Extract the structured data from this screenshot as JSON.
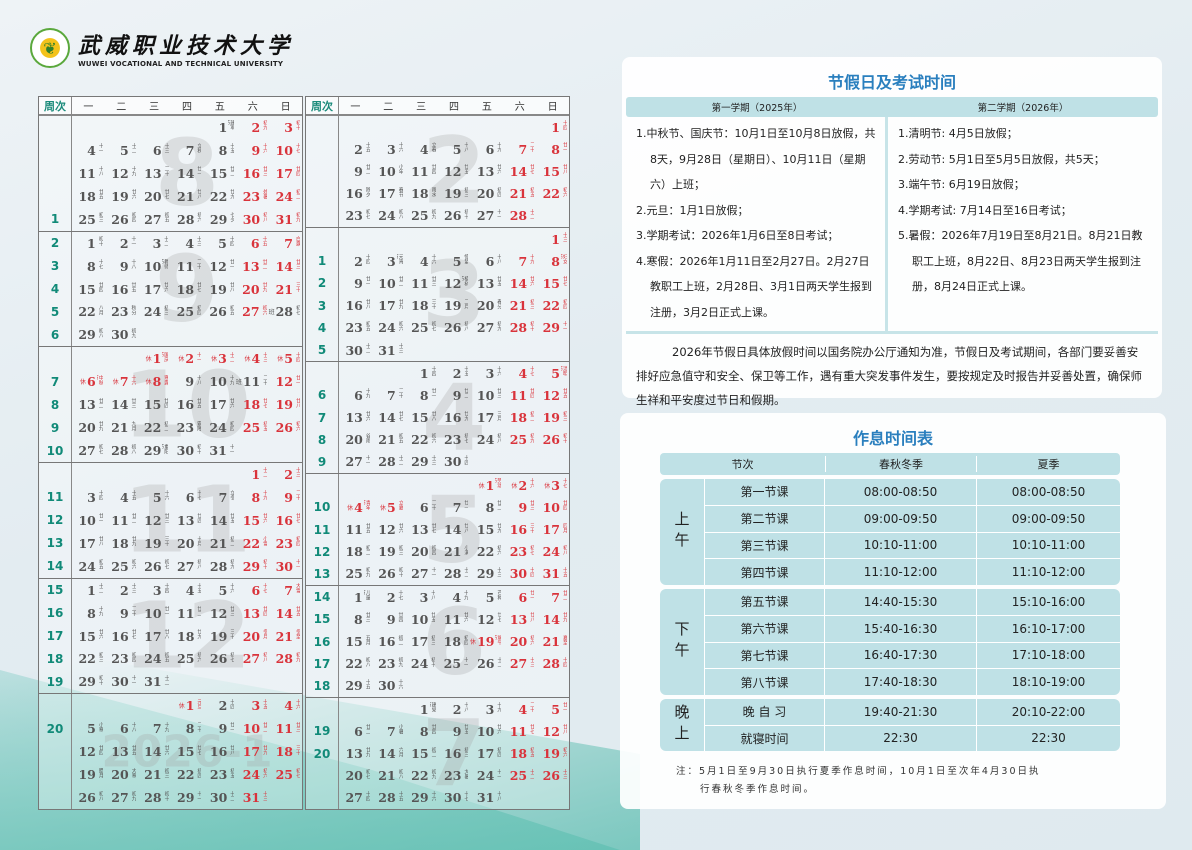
{
  "header": {
    "logo_text_cn": "武威职业技术大学",
    "logo_text_en": "WUWEI VOCATIONAL AND TECHNICAL UNIVERSITY"
  },
  "calendar": {
    "week_col_label": "周次",
    "weekdays": [
      "一",
      "二",
      "三",
      "四",
      "五",
      "六",
      "日"
    ],
    "colors": {
      "weekend": "#d9333b",
      "weekday": "#555555",
      "week_number": "#118a78"
    },
    "rest_mark": "休",
    "work_mark": "班",
    "columns": [
      {
        "months": [
          {
            "watermark": "8",
            "year": 2025,
            "month": 8,
            "first_weekday": 5,
            "days": 31,
            "week_numbers": [
              "",
              "",
              "",
              "",
              "1"
            ],
            "rest": [],
            "work": [],
            "lunar": [
              "建军节",
              "初九",
              "初十",
              "十一",
              "十二",
              "十三",
              "立秋",
              "十五",
              "十六",
              "十七",
              "十八",
              "十九",
              "二十",
              "廿一",
              "廿二",
              "廿三",
              "廿四",
              "廿五",
              "廿六",
              "廿七",
              "廿八",
              "廿九",
              "处暑",
              "初二",
              "初三",
              "初四",
              "初五",
              "初六",
              "七夕",
              "初八",
              "初九"
            ]
          },
          {
            "watermark": "9",
            "year": 2025,
            "month": 9,
            "first_weekday": 1,
            "days": 30,
            "week_numbers": [
              "2",
              "3",
              "4",
              "5",
              "6"
            ],
            "rest": [],
            "work": [
              28
            ],
            "lunar": [
              "初十",
              "十一",
              "十二",
              "十三",
              "十四",
              "十五",
              "白露",
              "十七",
              "十八",
              "教师节",
              "二十",
              "廿一",
              "廿二",
              "廿三",
              "廿四",
              "廿五",
              "廿六",
              "廿七",
              "廿八",
              "廿九",
              "三十",
              "八月",
              "秋分",
              "初三",
              "初四",
              "初五",
              "初六",
              "初七",
              "初八",
              "初九"
            ]
          },
          {
            "watermark": "10",
            "year": 2025,
            "month": 10,
            "first_weekday": 3,
            "days": 31,
            "week_numbers": [
              "",
              "7",
              "8",
              "9",
              "10"
            ],
            "rest": [
              1,
              2,
              3,
              4,
              5,
              6,
              7,
              8
            ],
            "work": [
              11
            ],
            "lunar": [
              "国庆节",
              "十一",
              "十二",
              "十三",
              "十四",
              "中秋节",
              "十六",
              "寒露",
              "十八",
              "十九",
              "二十",
              "廿一",
              "廿二",
              "廿三",
              "廿四",
              "廿五",
              "廿六",
              "廿七",
              "廿八",
              "廿九",
              "九月",
              "初二",
              "霜降",
              "初四",
              "初五",
              "初六",
              "初七",
              "初八",
              "重阳节",
              "初十",
              "十一"
            ]
          },
          {
            "watermark": "11",
            "year": 2025,
            "month": 11,
            "first_weekday": 6,
            "days": 30,
            "week_numbers": [
              "",
              "11",
              "12",
              "13",
              "14"
            ],
            "rest": [],
            "work": [],
            "lunar": [
              "十二",
              "十三",
              "十四",
              "十五",
              "十六",
              "十七",
              "立冬",
              "十九",
              "二十",
              "廿一",
              "廿二",
              "廿三",
              "廿四",
              "廿五",
              "廿六",
              "廿七",
              "廿八",
              "廿九",
              "三十",
              "十月",
              "初二",
              "小雪",
              "初四",
              "初五",
              "初六",
              "初七",
              "初八",
              "初九",
              "初十",
              "十一"
            ]
          },
          {
            "watermark": "12",
            "year": 2025,
            "month": 12,
            "first_weekday": 1,
            "days": 31,
            "week_numbers": [
              "15",
              "16",
              "17",
              "18",
              "19"
            ],
            "rest": [],
            "work": [],
            "lunar": [
              "十二",
              "十三",
              "十四",
              "十五",
              "十六",
              "十七",
              "大雪",
              "十九",
              "二十",
              "廿一",
              "廿二",
              "廿三",
              "廿四",
              "廿五",
              "廿六",
              "廿七",
              "廿八",
              "廿九",
              "三十",
              "冬月",
              "冬至",
              "初三",
              "初四",
              "初五",
              "初六",
              "初七",
              "初八",
              "初九",
              "初十",
              "十一",
              "十二"
            ]
          },
          {
            "watermark": "2026-1",
            "year": 2026,
            "month": 1,
            "first_weekday": 4,
            "days": 31,
            "week_numbers": [
              "",
              "20",
              "",
              "",
              ""
            ],
            "rest": [
              1
            ],
            "work": [],
            "lunar": [
              "元旦",
              "十四",
              "十五",
              "十六",
              "小寒",
              "十八",
              "十九",
              "二十",
              "廿一",
              "廿二",
              "廿三",
              "廿四",
              "廿五",
              "廿六",
              "廿七",
              "廿八",
              "廿九",
              "三十",
              "腊月",
              "大寒",
              "初三",
              "初四",
              "初五",
              "初六",
              "初七",
              "初八",
              "初九",
              "初十",
              "十一",
              "十二",
              "十三"
            ]
          }
        ]
      },
      {
        "months": [
          {
            "watermark": "2",
            "year": 2026,
            "month": 2,
            "first_weekday": 7,
            "days": 28,
            "week_numbers": [
              "",
              "",
              "",
              "",
              ""
            ],
            "rest": [],
            "work": [],
            "lunar": [
              "十四",
              "十五",
              "十六",
              "立春",
              "十八",
              "十九",
              "二十",
              "廿一",
              "廿二",
              "小年",
              "廿四",
              "廿五",
              "廿六",
              "廿七",
              "廿八",
              "除夕",
              "春节",
              "雨水",
              "初三",
              "初四",
              "初五",
              "初六",
              "初七",
              "初八",
              "初九",
              "初十",
              "十一",
              "十二"
            ]
          },
          {
            "watermark": "3",
            "year": 2026,
            "month": 3,
            "first_weekday": 7,
            "days": 31,
            "week_numbers": [
              "",
              "1",
              "2",
              "3",
              "4",
              "5"
            ],
            "rest": [],
            "work": [],
            "lunar": [
              "十三",
              "十四",
              "元宵节",
              "十六",
              "惊蛰",
              "十八",
              "十九",
              "妇女节",
              "廿一",
              "廿二",
              "廿三",
              "植树节",
              "廿五",
              "廿六",
              "廿七",
              "廿八",
              "廿九",
              "三十",
              "二月",
              "春分",
              "初三",
              "初四",
              "初五",
              "初六",
              "初七",
              "初八",
              "初九",
              "初十",
              "十一",
              "十二",
              "十三"
            ]
          },
          {
            "watermark": "4",
            "year": 2026,
            "month": 4,
            "first_weekday": 3,
            "days": 30,
            "week_numbers": [
              "",
              "6",
              "7",
              "8",
              "9"
            ],
            "rest": [],
            "work": [],
            "lunar": [
              "十四",
              "十五",
              "十六",
              "十七",
              "清明节",
              "十九",
              "二十",
              "廿一",
              "廿二",
              "廿三",
              "廿四",
              "廿五",
              "廿六",
              "廿七",
              "廿八",
              "廿九",
              "三月",
              "初二",
              "初三",
              "谷雨",
              "初五",
              "初六",
              "初七",
              "初八",
              "初九",
              "初十",
              "十一",
              "十二",
              "十三",
              "十四"
            ]
          },
          {
            "watermark": "5",
            "year": 2026,
            "month": 5,
            "first_weekday": 5,
            "days": 31,
            "week_numbers": [
              "",
              "10",
              "11",
              "12",
              "13"
            ],
            "rest": [
              1,
              2,
              3,
              4,
              5
            ],
            "work": [],
            "lunar": [
              "劳动节",
              "十六",
              "十七",
              "青年节",
              "立夏",
              "二十",
              "廿一",
              "廿二",
              "廿三",
              "廿四",
              "廿五",
              "廿六",
              "廿七",
              "廿八",
              "廿九",
              "三十",
              "四月",
              "初二",
              "初三",
              "初四",
              "小满",
              "初六",
              "初七",
              "初八",
              "初九",
              "初十",
              "十一",
              "十二",
              "十三",
              "十四",
              "十五"
            ]
          },
          {
            "watermark": "6",
            "year": 2026,
            "month": 6,
            "first_weekday": 1,
            "days": 30,
            "week_numbers": [
              "14",
              "15",
              "16",
              "17",
              "18"
            ],
            "rest": [
              19
            ],
            "work": [],
            "lunar": [
              "儿童节",
              "十七",
              "十八",
              "十九",
              "芒种",
              "廿一",
              "廿二",
              "廿三",
              "廿四",
              "廿五",
              "廿六",
              "廿七",
              "廿八",
              "廿九",
              "五月",
              "初二",
              "初三",
              "初四",
              "端午节",
              "初六",
              "夏至",
              "初八",
              "初九",
              "初十",
              "十一",
              "十二",
              "十三",
              "十四",
              "十五",
              "十六"
            ]
          },
          {
            "watermark": "7",
            "year": 2026,
            "month": 7,
            "first_weekday": 3,
            "days": 31,
            "week_numbers": [
              "",
              "19",
              "20",
              "",
              ""
            ],
            "rest": [],
            "work": [],
            "lunar": [
              "建党节",
              "十八",
              "十九",
              "二十",
              "廿一",
              "廿二",
              "小暑",
              "廿四",
              "廿五",
              "廿六",
              "廿七",
              "廿八",
              "廿九",
              "六月",
              "初二",
              "初三",
              "初四",
              "初五",
              "初六",
              "初七",
              "初八",
              "初九",
              "大暑",
              "十一",
              "十二",
              "十三",
              "十四",
              "十五",
              "十六",
              "十七",
              "十八"
            ]
          }
        ]
      }
    ]
  },
  "holidays": {
    "title": "节假日及考试时间",
    "semester1": {
      "label": "第一学期（2025年）",
      "items": [
        "1.中秋节、国庆节：10月1日至10月8日放假，共8天，9月28日（星期日）、10月11日（星期六）上班；",
        "2.元旦：1月1日放假；",
        "3.学期考试：2026年1月6日至8日考试；",
        "4.寒假：2026年1月11日至2月27日。2月27日教职工上班，2月28日、3月1日两天学生报到注册，3月2日正式上课。"
      ]
    },
    "semester2": {
      "label": "第二学期（2026年）",
      "items": [
        "1.清明节: 4月5日放假；",
        "2.劳动节: 5月1日至5月5日放假，共5天；",
        "3.端午节: 6月19日放假；",
        "4.学期考试: 7月14日至16日考试；",
        "5.暑假：2026年7月19日至8月21日。8月21日教职工上班，8月22日、8月23日两天学生报到注册，8月24日正式上课。"
      ]
    },
    "notice": "2026年节假日具体放假时间以国务院办公厅通知为准，节假日及考试期间，各部门要妥善安排好应急值守和安全、保卫等工作，遇有重大突发事件发生，要按规定及时报告并妥善处置，确保师生祥和平安度过节日和假期。"
  },
  "schedule": {
    "title": "作息时间表",
    "headers": [
      "节次",
      "春秋冬季",
      "夏季"
    ],
    "groups": [
      {
        "label": "上午",
        "rows": [
          [
            "第一节课",
            "08:00-08:50",
            "08:00-08:50"
          ],
          [
            "第二节课",
            "09:00-09:50",
            "09:00-09:50"
          ],
          [
            "第三节课",
            "10:10-11:00",
            "10:10-11:00"
          ],
          [
            "第四节课",
            "11:10-12:00",
            "11:10-12:00"
          ]
        ]
      },
      {
        "label": "下午",
        "rows": [
          [
            "第五节课",
            "14:40-15:30",
            "15:10-16:00"
          ],
          [
            "第六节课",
            "15:40-16:30",
            "16:10-17:00"
          ],
          [
            "第七节课",
            "16:40-17:30",
            "17:10-18:00"
          ],
          [
            "第八节课",
            "17:40-18:30",
            "18:10-19:00"
          ]
        ]
      },
      {
        "label": "晚上",
        "rows": [
          [
            "晚 自 习",
            "19:40-21:30",
            "20:10-22:00"
          ],
          [
            "就寝时间",
            "22:30",
            "22:30"
          ]
        ]
      }
    ],
    "note_line1": "注：5月1日至9月30日执行夏季作息时间，10月1日至次年4月30日执",
    "note_line2": "行春秋冬季作息时间。",
    "accent_color": "#2a7fbe",
    "table_color": "#bfe1e6"
  }
}
